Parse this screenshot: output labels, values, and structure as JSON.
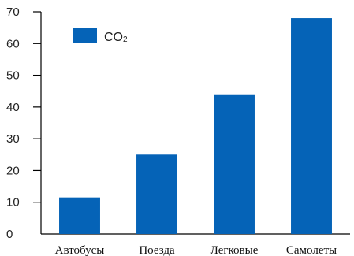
{
  "chart_data": {
    "type": "bar",
    "categories": [
      "Автобусы",
      "Поезда",
      "Легковые",
      "Самолеты"
    ],
    "series": [
      {
        "name": "CO2",
        "values": [
          11.5,
          25,
          44,
          68
        ]
      }
    ],
    "ylim": [
      0,
      70
    ],
    "yticks": [
      0,
      10,
      20,
      30,
      40,
      50,
      60,
      70
    ],
    "title": "",
    "xlabel": "",
    "ylabel": "",
    "grid": false,
    "legend_position": "top-left",
    "bar_color": "#0563b7"
  },
  "legend": {
    "label_main": "CO",
    "label_sub": "2"
  }
}
